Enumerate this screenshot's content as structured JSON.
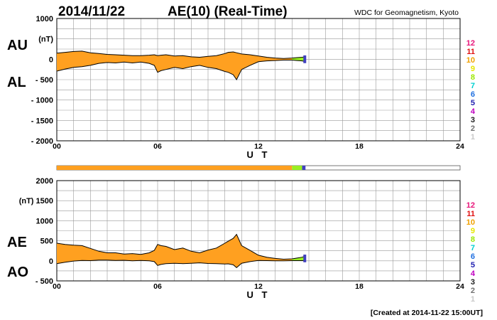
{
  "header": {
    "date": "2014/11/22",
    "title": "AE(10) (Real-Time)",
    "source": "WDC for Geomagnetism, Kyoto"
  },
  "footer": {
    "created": "[Created at 2014-11-22 15:00UT]"
  },
  "stations": {
    "labels": [
      "12",
      "11",
      "10",
      "9",
      "8",
      "7",
      "6",
      "5",
      "4",
      "3",
      "2",
      "1"
    ],
    "colors": [
      "#e8157a",
      "#e01010",
      "#f0a000",
      "#e6e600",
      "#9be800",
      "#00d0d0",
      "#1e6fe0",
      "#2020b0",
      "#c000c0",
      "#202020",
      "#707070",
      "#c8c8c8"
    ]
  },
  "colors": {
    "fill": "#ffa020",
    "line": "#000000",
    "grid": "#999999",
    "recent": "#99ee22",
    "latest": "#4040c0"
  },
  "chart_data": [
    {
      "type": "area",
      "panel": "AU/AL",
      "big_labels": [
        "AU",
        "AL"
      ],
      "ylabel": "(nT)",
      "xlabel": "U T",
      "xlim": [
        0,
        24
      ],
      "ylim": [
        -2000,
        1000
      ],
      "yticks": [
        1000,
        500,
        0,
        -500,
        -1000,
        -1500,
        -2000
      ],
      "ytick_labels": [
        "1000",
        "(nT)",
        "0",
        "- 500",
        "- 1000",
        "- 1500",
        "- 2000"
      ],
      "xticks": [
        0,
        6,
        12,
        18,
        24
      ],
      "xtick_labels": [
        "00",
        "06",
        "12",
        "18",
        "24"
      ],
      "grid": true,
      "x": [
        0,
        0.5,
        1,
        1.5,
        2,
        2.5,
        3,
        3.5,
        4,
        4.5,
        5,
        5.5,
        5.8,
        6,
        6.2,
        6.5,
        7,
        7.5,
        8,
        8.5,
        9,
        9.5,
        10,
        10.2,
        10.5,
        10.7,
        11,
        11.5,
        12,
        12.5,
        13,
        13.5,
        14,
        14.3,
        14.6,
        14.8
      ],
      "series": [
        {
          "name": "AU",
          "values": [
            150,
            170,
            190,
            200,
            160,
            140,
            120,
            110,
            100,
            90,
            90,
            100,
            110,
            90,
            100,
            110,
            80,
            90,
            60,
            50,
            70,
            90,
            140,
            170,
            180,
            160,
            130,
            110,
            80,
            50,
            30,
            20,
            30,
            40,
            50,
            60
          ]
        },
        {
          "name": "AL",
          "values": [
            -290,
            -240,
            -200,
            -180,
            -150,
            -100,
            -80,
            -90,
            -70,
            -90,
            -70,
            -100,
            -150,
            -320,
            -280,
            -250,
            -200,
            -230,
            -180,
            -150,
            -200,
            -230,
            -300,
            -320,
            -380,
            -500,
            -250,
            -150,
            -60,
            -40,
            -30,
            -20,
            -20,
            -30,
            -40,
            -60
          ]
        }
      ]
    },
    {
      "type": "area",
      "panel": "AE/AO",
      "big_labels": [
        "AE",
        "AO"
      ],
      "ylabel": "(nT)",
      "xlabel": "U T",
      "xlim": [
        0,
        24
      ],
      "ylim": [
        -500,
        2000
      ],
      "yticks": [
        2000,
        1500,
        1000,
        500,
        0,
        -500
      ],
      "ytick_labels": [
        "2000",
        "(nT)  1500",
        "1000",
        "500",
        "0",
        "- 500"
      ],
      "xticks": [
        0,
        6,
        12,
        18,
        24
      ],
      "xtick_labels": [
        "00",
        "06",
        "12",
        "18",
        "24"
      ],
      "grid": true,
      "x": [
        0,
        0.5,
        1,
        1.5,
        2,
        2.5,
        3,
        3.5,
        4,
        4.5,
        5,
        5.5,
        5.8,
        6,
        6.2,
        6.5,
        7,
        7.5,
        8,
        8.5,
        9,
        9.5,
        10,
        10.2,
        10.5,
        10.7,
        11,
        11.5,
        12,
        12.5,
        13,
        13.5,
        14,
        14.3,
        14.6,
        14.8
      ],
      "series": [
        {
          "name": "AE",
          "values": [
            440,
            410,
            390,
            380,
            310,
            240,
            200,
            200,
            170,
            180,
            160,
            200,
            260,
            410,
            380,
            360,
            280,
            320,
            240,
            200,
            270,
            320,
            440,
            490,
            560,
            660,
            380,
            260,
            140,
            90,
            60,
            40,
            50,
            70,
            90,
            120
          ]
        },
        {
          "name": "AO",
          "values": [
            -70,
            -35,
            -5,
            10,
            5,
            20,
            20,
            10,
            15,
            0,
            10,
            0,
            -20,
            -115,
            -90,
            -70,
            -60,
            -70,
            -60,
            -50,
            -65,
            -70,
            -80,
            -75,
            -100,
            -170,
            -60,
            -20,
            10,
            5,
            0,
            0,
            5,
            5,
            5,
            0
          ]
        }
      ]
    }
  ],
  "station_bar": {
    "segments": [
      {
        "from": 0,
        "to": 14.0,
        "color": "#ffa020"
      },
      {
        "from": 14.0,
        "to": 14.6,
        "color": "#99ee22"
      },
      {
        "from": 14.6,
        "to": 14.8,
        "color": "#4040c0"
      }
    ]
  }
}
